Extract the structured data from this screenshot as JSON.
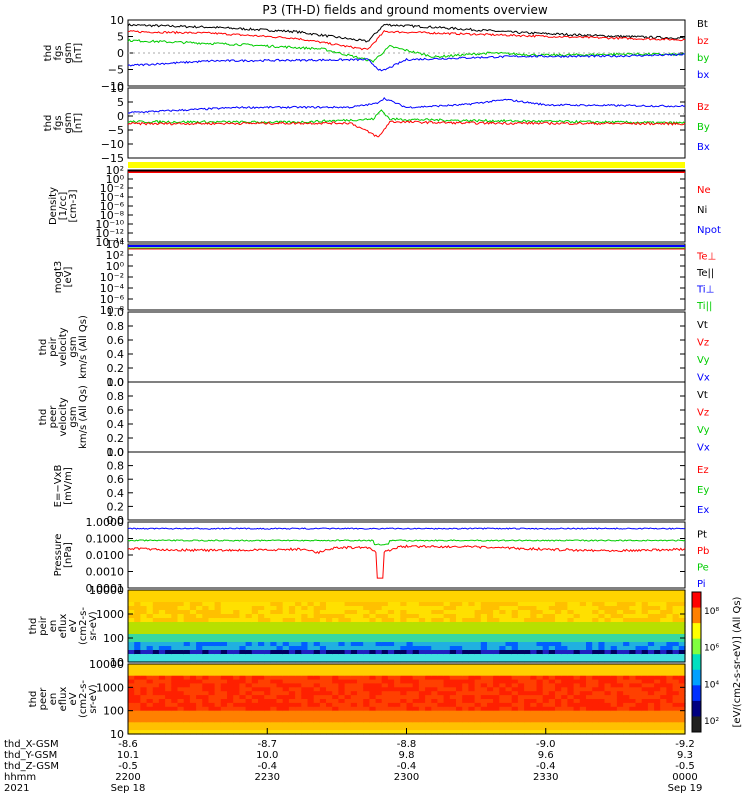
{
  "title": "P3 (TH-D) fields and ground moments overview",
  "colors": {
    "black": "#000000",
    "red": "#ff0000",
    "green": "#00cc00",
    "blue": "#0000ff",
    "yellow": "#ffff00"
  },
  "chart_data": [
    {
      "type": "line",
      "ylabel": [
        "thd",
        "fgs",
        "gsm",
        "[nT]"
      ],
      "ylim": [
        -10,
        10
      ],
      "ticks": [
        "10",
        "5",
        "0",
        "−5",
        "−10"
      ],
      "legend": [
        {
          "name": "Bt",
          "color": "#000000"
        },
        {
          "name": "bz",
          "color": "#ff0000"
        },
        {
          "name": "by",
          "color": "#00cc00"
        },
        {
          "name": "bx",
          "color": "#0000ff"
        }
      ],
      "series": [
        {
          "name": "Bt",
          "color": "#000000",
          "knots": [
            [
              0,
              8.5
            ],
            [
              0.15,
              7.8
            ],
            [
              0.3,
              6.5
            ],
            [
              0.43,
              3.5
            ],
            [
              0.46,
              8.6
            ],
            [
              0.55,
              7.8
            ],
            [
              0.7,
              6.2
            ],
            [
              0.85,
              5.2
            ],
            [
              1,
              4.5
            ]
          ],
          "noise": 0.35
        },
        {
          "name": "bz",
          "color": "#ff0000",
          "knots": [
            [
              0,
              6.5
            ],
            [
              0.15,
              6
            ],
            [
              0.3,
              4.5
            ],
            [
              0.43,
              1
            ],
            [
              0.46,
              6.5
            ],
            [
              0.6,
              5.8
            ],
            [
              0.8,
              4.8
            ],
            [
              1,
              4
            ]
          ],
          "noise": 0.3
        },
        {
          "name": "by",
          "color": "#00cc00",
          "knots": [
            [
              0,
              3.8
            ],
            [
              0.2,
              2.6
            ],
            [
              0.35,
              1.2
            ],
            [
              0.44,
              -2.5
            ],
            [
              0.47,
              2
            ],
            [
              0.55,
              -1.2
            ],
            [
              0.65,
              0
            ],
            [
              0.75,
              -0.7
            ],
            [
              0.9,
              -0.3
            ],
            [
              1,
              -0.5
            ]
          ],
          "noise": 0.35
        },
        {
          "name": "bx",
          "color": "#0000ff",
          "knots": [
            [
              0,
              -3.8
            ],
            [
              0.15,
              -2.4
            ],
            [
              0.3,
              -2.2
            ],
            [
              0.43,
              -2
            ],
            [
              0.455,
              -5.6
            ],
            [
              0.5,
              -2
            ],
            [
              0.7,
              -1
            ],
            [
              0.85,
              -1
            ],
            [
              1,
              -0.5
            ]
          ],
          "noise": 0.3
        }
      ]
    },
    {
      "type": "line",
      "ylabel": [
        "thd",
        "fgs",
        "gsm",
        "[nT]"
      ],
      "ylim": [
        -17,
        10
      ],
      "ticks": [
        "10",
        "5",
        "0",
        "−5",
        "−10",
        "−15"
      ],
      "legend": [
        {
          "name": "Bz",
          "color": "#ff0000"
        },
        {
          "name": "By",
          "color": "#00cc00"
        },
        {
          "name": "Bx",
          "color": "#0000ff"
        }
      ],
      "series": [
        {
          "name": "Bx",
          "color": "#0000ff",
          "knots": [
            [
              0,
              0.5
            ],
            [
              0.2,
              2.5
            ],
            [
              0.4,
              2.6
            ],
            [
              0.445,
              4
            ],
            [
              0.46,
              6
            ],
            [
              0.5,
              2.5
            ],
            [
              0.6,
              3.5
            ],
            [
              0.68,
              5.5
            ],
            [
              0.75,
              3.5
            ],
            [
              1,
              3
            ]
          ],
          "noise": 0.35
        },
        {
          "name": "By",
          "color": "#00cc00",
          "knots": [
            [
              0,
              -3
            ],
            [
              0.3,
              -3.2
            ],
            [
              0.44,
              -2
            ],
            [
              0.455,
              1.5
            ],
            [
              0.47,
              -2
            ],
            [
              0.6,
              -2.5
            ],
            [
              0.8,
              -3
            ],
            [
              1,
              -3.5
            ]
          ],
          "noise": 0.45
        },
        {
          "name": "Bz",
          "color": "#ff0000",
          "knots": [
            [
              0,
              -3.8
            ],
            [
              0.4,
              -3.5
            ],
            [
              0.45,
              -9
            ],
            [
              0.47,
              -3
            ],
            [
              0.6,
              -3.5
            ],
            [
              1,
              -3.8
            ]
          ],
          "noise": 0.45
        }
      ]
    },
    {
      "type": "line",
      "ylabel": [
        "Density",
        "[1/cc]",
        "[cm-3]"
      ],
      "ticks": [
        "10²",
        "10⁰",
        "10⁻²",
        "10⁻⁴",
        "10⁻⁶",
        "10⁻⁸",
        "10⁻¹⁰",
        "10⁻¹²",
        "10⁻¹⁴"
      ],
      "legend": [
        {
          "name": "Ne",
          "color": "#ff0000"
        },
        {
          "name": "Ni",
          "color": "#000000"
        },
        {
          "name": "Npot",
          "color": "#0000ff"
        }
      ]
    },
    {
      "type": "line",
      "ylabel": [
        "mogt3",
        "[eV]"
      ],
      "ticks": [
        "10⁴",
        "10²",
        "10⁰",
        "10⁻²",
        "10⁻⁴",
        "10⁻⁶",
        "10⁻⁸"
      ],
      "legend": [
        {
          "name": "Te⊥",
          "color": "#ff0000"
        },
        {
          "name": "Te||",
          "color": "#000000"
        },
        {
          "name": "Ti⊥",
          "color": "#0000ff"
        },
        {
          "name": "Ti||",
          "color": "#00cc00"
        }
      ]
    },
    {
      "type": "line",
      "ylabel": [
        "thd",
        "peir",
        "velocity",
        "gsm",
        "km/s (All Qs)"
      ],
      "ylim": [
        0,
        1
      ],
      "ticks": [
        "1.0",
        "0.8",
        "0.6",
        "0.4",
        "0.2",
        "0.0"
      ],
      "legend": [
        {
          "name": "Vt",
          "color": "#000000"
        },
        {
          "name": "Vz",
          "color": "#ff0000"
        },
        {
          "name": "Vy",
          "color": "#00cc00"
        },
        {
          "name": "Vx",
          "color": "#0000ff"
        }
      ]
    },
    {
      "type": "line",
      "ylabel": [
        "thd",
        "peer",
        "velocity",
        "gsm",
        "km/s (All Qs)"
      ],
      "ylim": [
        0,
        1
      ],
      "ticks": [
        "1.0",
        "0.8",
        "0.6",
        "0.4",
        "0.2",
        "0.0"
      ],
      "legend": [
        {
          "name": "Vt",
          "color": "#000000"
        },
        {
          "name": "Vz",
          "color": "#ff0000"
        },
        {
          "name": "Vy",
          "color": "#00cc00"
        },
        {
          "name": "Vx",
          "color": "#0000ff"
        }
      ]
    },
    {
      "type": "line",
      "ylabel": [
        "E=−VxB",
        "[mV/m]"
      ],
      "ylim": [
        0,
        1
      ],
      "ticks": [
        "1.0",
        "0.8",
        "0.6",
        "0.4",
        "0.2",
        "0.0"
      ],
      "legend": [
        {
          "name": "Ez",
          "color": "#ff0000"
        },
        {
          "name": "Ey",
          "color": "#00cc00"
        },
        {
          "name": "Ex",
          "color": "#0000ff"
        }
      ]
    },
    {
      "type": "line",
      "ylabel": [
        "Pressure",
        "[nPa]"
      ],
      "ticks": [
        "1.0000",
        "0.1000",
        "0.0100",
        "0.0010",
        "0.0001"
      ],
      "legend": [
        {
          "name": "Pt",
          "color": "#000000"
        },
        {
          "name": "Pb",
          "color": "#ff0000"
        },
        {
          "name": "Pe",
          "color": "#00cc00"
        },
        {
          "name": "Pi",
          "color": "#0000ff"
        }
      ]
    },
    {
      "type": "heatmap",
      "ylabel": [
        "thd",
        "peir",
        "en",
        "eflux",
        "eV",
        "(cm2-s-",
        "sr-eV)"
      ],
      "ticks": [
        "10000",
        "1000",
        "100",
        "10"
      ]
    },
    {
      "type": "heatmap",
      "ylabel": [
        "thd",
        "peer",
        "en",
        "eflux",
        "eV",
        "(cm2-s-",
        "sr-eV)"
      ],
      "ticks": [
        "10000",
        "1000",
        "100",
        "10"
      ]
    }
  ],
  "colorbar": {
    "label": "[eV/(cm2-s-sr-eV)] (All Qs)",
    "ticks": [
      "10⁸",
      "10⁶",
      "10⁴",
      "10²"
    ]
  },
  "xaxis": {
    "rows": [
      {
        "label": "thd_X-GSM",
        "values": [
          "-8.6",
          "-8.7",
          "-8.8",
          "-9.0",
          "-9.2"
        ]
      },
      {
        "label": "thd_Y-GSM",
        "values": [
          "10.1",
          "10.0",
          "9.8",
          "9.6",
          "9.3"
        ]
      },
      {
        "label": "thd_Z-GSM",
        "values": [
          "-0.5",
          "-0.4",
          "-0.4",
          "-0.4",
          "-0.5"
        ]
      },
      {
        "label": "hhmm",
        "values": [
          "2200",
          "2230",
          "2300",
          "2330",
          "0000"
        ]
      },
      {
        "label": "2021",
        "values": [
          "Sep 18",
          "",
          "",
          "",
          "Sep 19"
        ]
      }
    ]
  }
}
